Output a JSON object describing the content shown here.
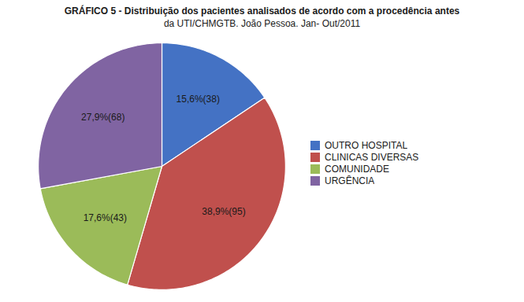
{
  "chart_data": {
    "type": "pie",
    "title": "GRÁFICO 5 - Distribuição dos pacientes analisados de acordo com a procedência antes",
    "subtitle": "da UTI/CHMGTB. João Pessoa. Jan- Out/2011",
    "categories": [
      "OUTRO HOSPITAL",
      "CLINICAS DIVERSAS",
      "COMUNIDADE",
      "URGÊNCIA"
    ],
    "values": [
      15.6,
      38.9,
      17.6,
      27.9
    ],
    "value_labels": [
      "15,6%(38)",
      "38,9%(95)",
      "17,6%(43)",
      "27,9%(68)"
    ],
    "colors": [
      "#4472C4",
      "#C0504D",
      "#9BBB59",
      "#8064A2"
    ],
    "data_labels": true,
    "legend": "right"
  }
}
